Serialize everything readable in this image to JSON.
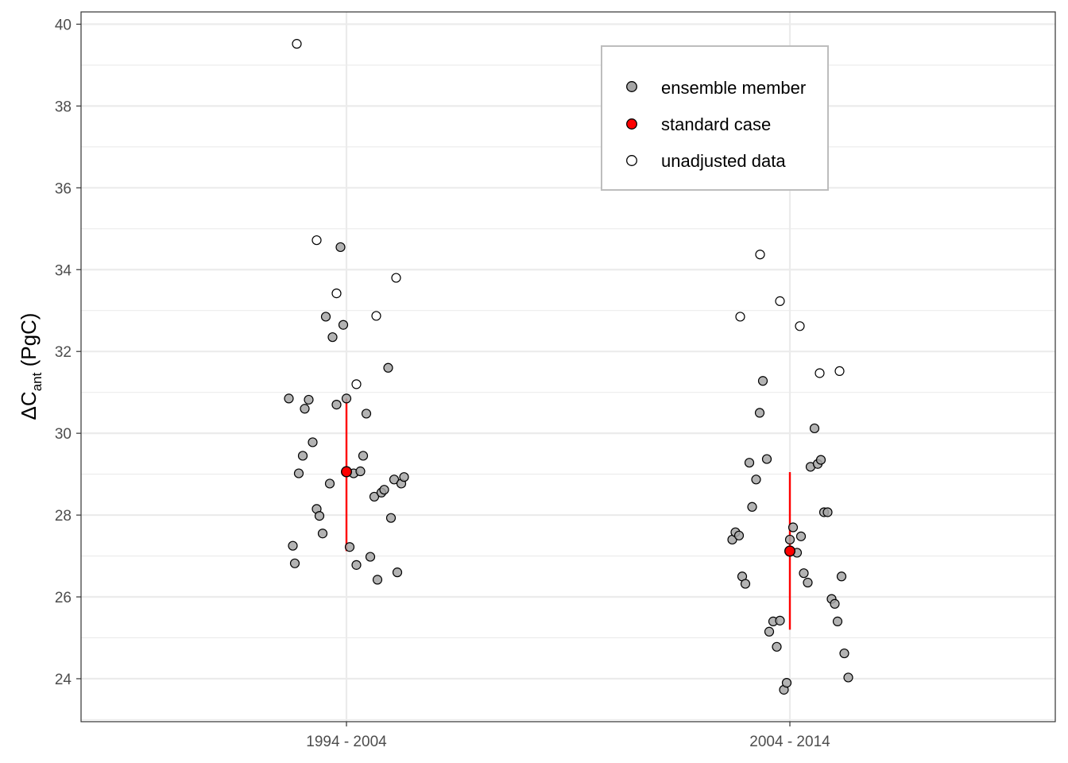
{
  "chart_data": {
    "type": "scatter",
    "ylabel_main": "ΔC",
    "ylabel_sub": "ant",
    "ylabel_unit": " (PgC)",
    "categories": [
      "1994 - 2004",
      "2004 - 2014"
    ],
    "ylim": [
      22.95,
      40.3
    ],
    "yticks": [
      24,
      26,
      28,
      30,
      32,
      34,
      36,
      38,
      40
    ],
    "grid": true,
    "legend_position": "top-right",
    "legend": [
      {
        "label": "ensemble member",
        "kind": "ensemble"
      },
      {
        "label": "standard case",
        "kind": "standard"
      },
      {
        "label": "unadjusted data",
        "kind": "unadjusted"
      }
    ],
    "colors": {
      "ensemble_fill": "#a6a6a6",
      "standard_fill": "#ff0000",
      "unadjusted_fill": "#ffffff",
      "error_bar": "#ff0000",
      "grid": "#ebebeb"
    },
    "series": [
      {
        "name": "ensemble member",
        "points": [
          {
            "x": "1994 - 2004",
            "offset": -0.145,
            "y": 30.85
          },
          {
            "x": "1994 - 2004",
            "offset": -0.135,
            "y": 27.25
          },
          {
            "x": "1994 - 2004",
            "offset": -0.13,
            "y": 26.82
          },
          {
            "x": "1994 - 2004",
            "offset": -0.12,
            "y": 29.02
          },
          {
            "x": "1994 - 2004",
            "offset": -0.11,
            "y": 29.45
          },
          {
            "x": "1994 - 2004",
            "offset": -0.105,
            "y": 30.6
          },
          {
            "x": "1994 - 2004",
            "offset": -0.095,
            "y": 30.82
          },
          {
            "x": "1994 - 2004",
            "offset": -0.085,
            "y": 29.78
          },
          {
            "x": "1994 - 2004",
            "offset": -0.075,
            "y": 28.15
          },
          {
            "x": "1994 - 2004",
            "offset": -0.068,
            "y": 27.98
          },
          {
            "x": "1994 - 2004",
            "offset": -0.06,
            "y": 27.55
          },
          {
            "x": "1994 - 2004",
            "offset": -0.052,
            "y": 32.85
          },
          {
            "x": "1994 - 2004",
            "offset": -0.042,
            "y": 28.77
          },
          {
            "x": "1994 - 2004",
            "offset": -0.035,
            "y": 32.35
          },
          {
            "x": "1994 - 2004",
            "offset": -0.025,
            "y": 30.7
          },
          {
            "x": "1994 - 2004",
            "offset": -0.015,
            "y": 34.55
          },
          {
            "x": "1994 - 2004",
            "offset": -0.008,
            "y": 32.65
          },
          {
            "x": "1994 - 2004",
            "offset": 0.0,
            "y": 30.85
          },
          {
            "x": "1994 - 2004",
            "offset": 0.008,
            "y": 27.22
          },
          {
            "x": "1994 - 2004",
            "offset": 0.018,
            "y": 29.02
          },
          {
            "x": "1994 - 2004",
            "offset": 0.025,
            "y": 26.78
          },
          {
            "x": "1994 - 2004",
            "offset": 0.035,
            "y": 29.07
          },
          {
            "x": "1994 - 2004",
            "offset": 0.042,
            "y": 29.45
          },
          {
            "x": "1994 - 2004",
            "offset": 0.05,
            "y": 30.48
          },
          {
            "x": "1994 - 2004",
            "offset": 0.06,
            "y": 26.98
          },
          {
            "x": "1994 - 2004",
            "offset": 0.07,
            "y": 28.45
          },
          {
            "x": "1994 - 2004",
            "offset": 0.078,
            "y": 26.42
          },
          {
            "x": "1994 - 2004",
            "offset": 0.088,
            "y": 28.55
          },
          {
            "x": "1994 - 2004",
            "offset": 0.095,
            "y": 28.62
          },
          {
            "x": "1994 - 2004",
            "offset": 0.105,
            "y": 31.6
          },
          {
            "x": "1994 - 2004",
            "offset": 0.112,
            "y": 27.93
          },
          {
            "x": "1994 - 2004",
            "offset": 0.12,
            "y": 28.87
          },
          {
            "x": "1994 - 2004",
            "offset": 0.128,
            "y": 26.6
          },
          {
            "x": "1994 - 2004",
            "offset": 0.138,
            "y": 28.77
          },
          {
            "x": "1994 - 2004",
            "offset": 0.145,
            "y": 28.93
          },
          {
            "x": "2004 - 2014",
            "offset": -0.145,
            "y": 27.4
          },
          {
            "x": "2004 - 2014",
            "offset": -0.137,
            "y": 27.58
          },
          {
            "x": "2004 - 2014",
            "offset": -0.128,
            "y": 27.5
          },
          {
            "x": "2004 - 2014",
            "offset": -0.12,
            "y": 26.5
          },
          {
            "x": "2004 - 2014",
            "offset": -0.112,
            "y": 26.32
          },
          {
            "x": "2004 - 2014",
            "offset": -0.102,
            "y": 29.28
          },
          {
            "x": "2004 - 2014",
            "offset": -0.095,
            "y": 28.2
          },
          {
            "x": "2004 - 2014",
            "offset": -0.085,
            "y": 28.87
          },
          {
            "x": "2004 - 2014",
            "offset": -0.076,
            "y": 30.5
          },
          {
            "x": "2004 - 2014",
            "offset": -0.068,
            "y": 31.28
          },
          {
            "x": "2004 - 2014",
            "offset": -0.058,
            "y": 29.37
          },
          {
            "x": "2004 - 2014",
            "offset": -0.052,
            "y": 25.15
          },
          {
            "x": "2004 - 2014",
            "offset": -0.042,
            "y": 25.4
          },
          {
            "x": "2004 - 2014",
            "offset": -0.033,
            "y": 24.78
          },
          {
            "x": "2004 - 2014",
            "offset": -0.025,
            "y": 25.42
          },
          {
            "x": "2004 - 2014",
            "offset": -0.015,
            "y": 23.73
          },
          {
            "x": "2004 - 2014",
            "offset": -0.008,
            "y": 23.9
          },
          {
            "x": "2004 - 2014",
            "offset": 0.0,
            "y": 27.4
          },
          {
            "x": "2004 - 2014",
            "offset": 0.008,
            "y": 27.7
          },
          {
            "x": "2004 - 2014",
            "offset": 0.018,
            "y": 27.08
          },
          {
            "x": "2004 - 2014",
            "offset": 0.028,
            "y": 27.48
          },
          {
            "x": "2004 - 2014",
            "offset": 0.035,
            "y": 26.58
          },
          {
            "x": "2004 - 2014",
            "offset": 0.045,
            "y": 26.35
          },
          {
            "x": "2004 - 2014",
            "offset": 0.052,
            "y": 29.18
          },
          {
            "x": "2004 - 2014",
            "offset": 0.062,
            "y": 30.12
          },
          {
            "x": "2004 - 2014",
            "offset": 0.07,
            "y": 29.25
          },
          {
            "x": "2004 - 2014",
            "offset": 0.078,
            "y": 29.35
          },
          {
            "x": "2004 - 2014",
            "offset": 0.086,
            "y": 28.07
          },
          {
            "x": "2004 - 2014",
            "offset": 0.095,
            "y": 28.07
          },
          {
            "x": "2004 - 2014",
            "offset": 0.105,
            "y": 25.95
          },
          {
            "x": "2004 - 2014",
            "offset": 0.113,
            "y": 25.83
          },
          {
            "x": "2004 - 2014",
            "offset": 0.12,
            "y": 25.4
          },
          {
            "x": "2004 - 2014",
            "offset": 0.13,
            "y": 26.5
          },
          {
            "x": "2004 - 2014",
            "offset": 0.137,
            "y": 24.62
          },
          {
            "x": "2004 - 2014",
            "offset": 0.147,
            "y": 24.03
          }
        ]
      },
      {
        "name": "standard case",
        "points": [
          {
            "x": "1994 - 2004",
            "offset": 0.0,
            "y": 29.06,
            "ymin": 27.12,
            "ymax": 30.85
          },
          {
            "x": "2004 - 2014",
            "offset": 0.0,
            "y": 27.12,
            "ymin": 25.2,
            "ymax": 29.05
          }
        ]
      },
      {
        "name": "unadjusted data",
        "points": [
          {
            "x": "1994 - 2004",
            "offset": -0.125,
            "y": 39.52
          },
          {
            "x": "1994 - 2004",
            "offset": -0.075,
            "y": 34.72
          },
          {
            "x": "1994 - 2004",
            "offset": -0.025,
            "y": 33.42
          },
          {
            "x": "1994 - 2004",
            "offset": 0.025,
            "y": 31.2
          },
          {
            "x": "1994 - 2004",
            "offset": 0.075,
            "y": 32.87
          },
          {
            "x": "1994 - 2004",
            "offset": 0.125,
            "y": 33.8
          },
          {
            "x": "2004 - 2014",
            "offset": -0.125,
            "y": 32.85
          },
          {
            "x": "2004 - 2014",
            "offset": -0.075,
            "y": 34.37
          },
          {
            "x": "2004 - 2014",
            "offset": -0.025,
            "y": 33.23
          },
          {
            "x": "2004 - 2014",
            "offset": 0.025,
            "y": 32.62
          },
          {
            "x": "2004 - 2014",
            "offset": 0.075,
            "y": 31.47
          },
          {
            "x": "2004 - 2014",
            "offset": 0.125,
            "y": 31.52
          }
        ]
      }
    ]
  }
}
